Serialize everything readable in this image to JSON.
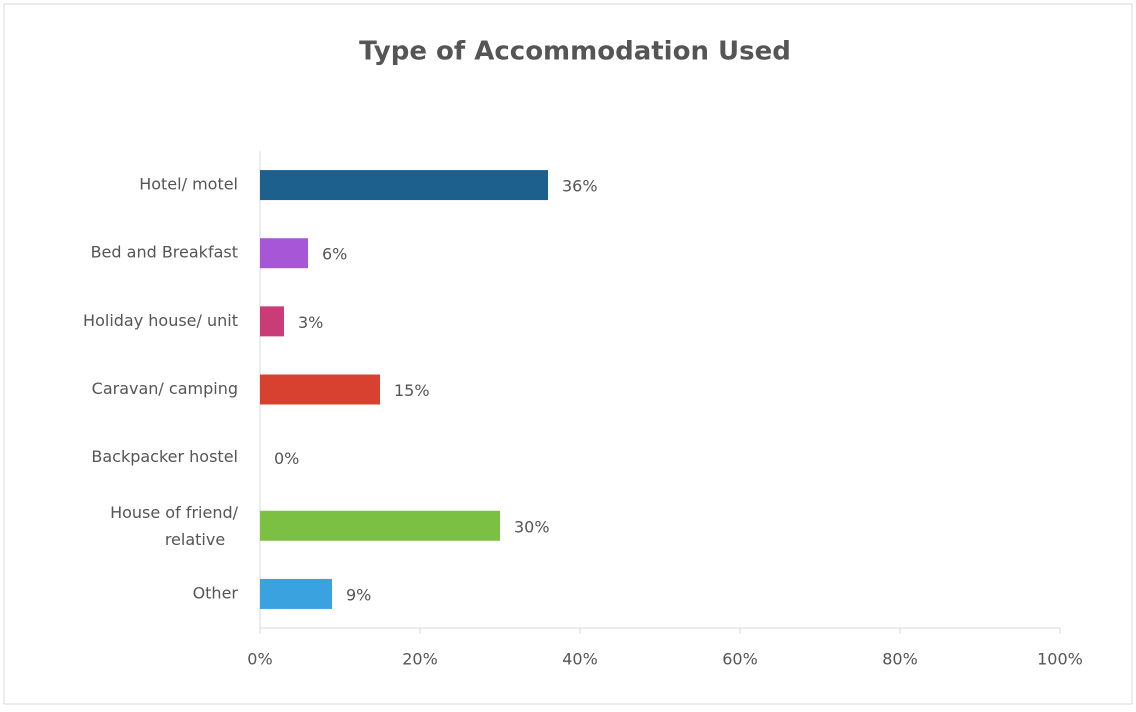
{
  "chart_data": {
    "type": "barh",
    "title": "Type of Accommodation Used",
    "categories": [
      "Hotel/ motel",
      "Bed and Breakfast",
      "Holiday house/ unit",
      "Caravan/ camping",
      "Backpacker hostel",
      "House of friend/ relative",
      "Other"
    ],
    "values": [
      36,
      6,
      3,
      15,
      0,
      30,
      9
    ],
    "value_labels": [
      "36%",
      "6%",
      "3%",
      "15%",
      "0%",
      "30%",
      "9%"
    ],
    "colors": [
      "#1d5f8d",
      "#a656d6",
      "#c93c78",
      "#d8402f",
      "#8c8c8c",
      "#7bc043",
      "#3aa2df"
    ],
    "xlim": [
      0,
      100
    ],
    "xticks": [
      {
        "value": 0,
        "label": "0%"
      },
      {
        "value": 20,
        "label": "20%"
      },
      {
        "value": 40,
        "label": "40%"
      },
      {
        "value": 60,
        "label": "60%"
      },
      {
        "value": 80,
        "label": "80%"
      },
      {
        "value": 100,
        "label": "100%"
      }
    ]
  }
}
